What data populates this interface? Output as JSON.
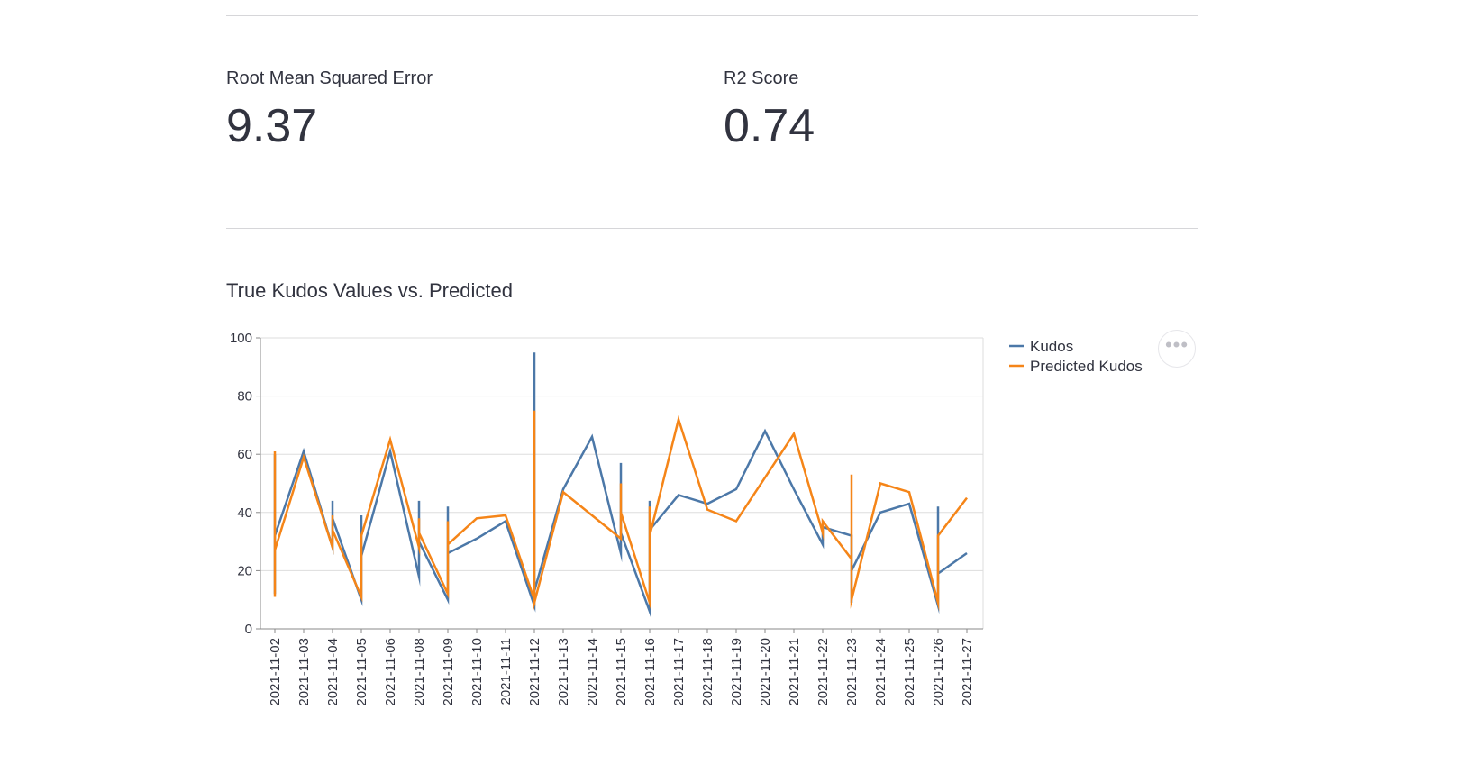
{
  "metrics": {
    "rmse": {
      "label": "Root Mean Squared Error",
      "value": "9.37"
    },
    "r2": {
      "label": "R2 Score",
      "value": "0.74"
    }
  },
  "chart": {
    "title": "True Kudos Values vs. Predicted",
    "menu_icon": "more-horizontal-icon"
  },
  "colors": {
    "kudos": "#4c78a8",
    "predicted": "#f58518",
    "grid": "#dddddd",
    "axis": "#888888"
  },
  "chart_data": {
    "type": "line",
    "title": "True Kudos Values vs. Predicted",
    "xlabel": "",
    "ylabel": "",
    "ylim": [
      0,
      100
    ],
    "yticks": [
      0,
      20,
      40,
      60,
      80,
      100
    ],
    "grid": true,
    "legend_position": "right",
    "categories": [
      "2021-11-02",
      "2021-11-03",
      "2021-11-04",
      "2021-11-05",
      "2021-11-06",
      "2021-11-08",
      "2021-11-09",
      "2021-11-10",
      "2021-11-11",
      "2021-11-12",
      "2021-11-13",
      "2021-11-14",
      "2021-11-15",
      "2021-11-16",
      "2021-11-17",
      "2021-11-18",
      "2021-11-19",
      "2021-11-20",
      "2021-11-21",
      "2021-11-22",
      "2021-11-23",
      "2021-11-24",
      "2021-11-25",
      "2021-11-26",
      "2021-11-27"
    ],
    "series": [
      {
        "name": "Kudos",
        "points": [
          [
            "2021-11-02",
            60
          ],
          [
            "2021-11-02",
            12
          ],
          [
            "2021-11-02",
            32
          ],
          [
            "2021-11-03",
            61
          ],
          [
            "2021-11-04",
            28
          ],
          [
            "2021-11-04",
            44
          ],
          [
            "2021-11-04",
            38
          ],
          [
            "2021-11-05",
            10
          ],
          [
            "2021-11-05",
            39
          ],
          [
            "2021-11-05",
            25
          ],
          [
            "2021-11-06",
            61
          ],
          [
            "2021-11-08",
            18
          ],
          [
            "2021-11-08",
            44
          ],
          [
            "2021-11-08",
            30
          ],
          [
            "2021-11-09",
            10
          ],
          [
            "2021-11-09",
            42
          ],
          [
            "2021-11-09",
            26
          ],
          [
            "2021-11-10",
            31
          ],
          [
            "2021-11-11",
            37
          ],
          [
            "2021-11-12",
            8
          ],
          [
            "2021-11-12",
            95
          ],
          [
            "2021-11-12",
            13
          ],
          [
            "2021-11-13",
            48
          ],
          [
            "2021-11-14",
            66
          ],
          [
            "2021-11-15",
            26
          ],
          [
            "2021-11-15",
            57
          ],
          [
            "2021-11-15",
            33
          ],
          [
            "2021-11-16",
            6
          ],
          [
            "2021-11-16",
            44
          ],
          [
            "2021-11-16",
            34
          ],
          [
            "2021-11-17",
            46
          ],
          [
            "2021-11-18",
            43
          ],
          [
            "2021-11-19",
            48
          ],
          [
            "2021-11-20",
            68
          ],
          [
            "2021-11-21",
            48
          ],
          [
            "2021-11-22",
            29
          ],
          [
            "2021-11-22",
            35
          ],
          [
            "2021-11-23",
            32
          ],
          [
            "2021-11-23",
            9
          ],
          [
            "2021-11-23",
            20
          ],
          [
            "2021-11-24",
            40
          ],
          [
            "2021-11-25",
            43
          ],
          [
            "2021-11-26",
            8
          ],
          [
            "2021-11-26",
            42
          ],
          [
            "2021-11-26",
            19
          ],
          [
            "2021-11-27",
            26
          ]
        ]
      },
      {
        "name": "Predicted Kudos",
        "points": [
          [
            "2021-11-02",
            61
          ],
          [
            "2021-11-02",
            11
          ],
          [
            "2021-11-02",
            27
          ],
          [
            "2021-11-03",
            59
          ],
          [
            "2021-11-04",
            28
          ],
          [
            "2021-11-04",
            39
          ],
          [
            "2021-11-04",
            34
          ],
          [
            "2021-11-05",
            11
          ],
          [
            "2021-11-05",
            32
          ],
          [
            "2021-11-06",
            65
          ],
          [
            "2021-11-08",
            28
          ],
          [
            "2021-11-08",
            38
          ],
          [
            "2021-11-08",
            33
          ],
          [
            "2021-11-09",
            12
          ],
          [
            "2021-11-09",
            37
          ],
          [
            "2021-11-09",
            29
          ],
          [
            "2021-11-10",
            38
          ],
          [
            "2021-11-11",
            39
          ],
          [
            "2021-11-12",
            10
          ],
          [
            "2021-11-12",
            75
          ],
          [
            "2021-11-12",
            9
          ],
          [
            "2021-11-13",
            47
          ],
          [
            "2021-11-15",
            31
          ],
          [
            "2021-11-15",
            50
          ],
          [
            "2021-11-15",
            40
          ],
          [
            "2021-11-16",
            9
          ],
          [
            "2021-11-16",
            42
          ],
          [
            "2021-11-16",
            32
          ],
          [
            "2021-11-17",
            72
          ],
          [
            "2021-11-18",
            41
          ],
          [
            "2021-11-19",
            37
          ],
          [
            "2021-11-21",
            67
          ],
          [
            "2021-11-22",
            33
          ],
          [
            "2021-11-22",
            37
          ],
          [
            "2021-11-23",
            24
          ],
          [
            "2021-11-23",
            53
          ],
          [
            "2021-11-23",
            10
          ],
          [
            "2021-11-24",
            50
          ],
          [
            "2021-11-25",
            47
          ],
          [
            "2021-11-26",
            9
          ],
          [
            "2021-11-26",
            32
          ],
          [
            "2021-11-27",
            45
          ]
        ]
      }
    ]
  }
}
